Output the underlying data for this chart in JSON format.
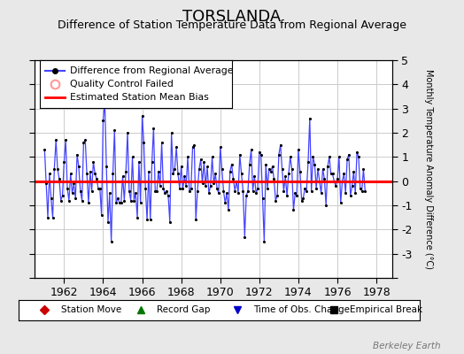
{
  "title": "TORSLANDA",
  "subtitle": "Difference of Station Temperature Data from Regional Average",
  "ylabel_right": "Monthly Temperature Anomaly Difference (°C)",
  "ylim": [
    -4,
    5
  ],
  "yticks": [
    -4,
    -3,
    -2,
    -1,
    0,
    1,
    2,
    3,
    4,
    5
  ],
  "xlim": [
    1960.5,
    1978.8
  ],
  "xticks": [
    1962,
    1964,
    1966,
    1968,
    1970,
    1972,
    1974,
    1976,
    1978
  ],
  "bias_value": 0.0,
  "title_fontsize": 13,
  "subtitle_fontsize": 9,
  "background_color": "#e8e8e8",
  "plot_bg_color": "#ffffff",
  "grid_color": "#cccccc",
  "line_color": "#4444ff",
  "dot_color": "#000000",
  "bias_color": "#ff0000",
  "watermark": "Berkeley Earth",
  "start_year": 1961.0,
  "legend1_entries": [
    {
      "type": "line_dot",
      "color": "#4444ff",
      "dot_color": "#000000",
      "label": "Difference from Regional Average"
    },
    {
      "type": "circle",
      "color": "#ffaaaa",
      "label": "Quality Control Failed"
    },
    {
      "type": "line",
      "color": "#ff0000",
      "label": "Estimated Station Mean Bias"
    }
  ],
  "legend2_entries": [
    {
      "marker": "D",
      "color": "#cc0000",
      "label": "Station Move"
    },
    {
      "marker": "^",
      "color": "#007700",
      "label": "Record Gap"
    },
    {
      "marker": "v",
      "color": "#0000cc",
      "label": "Time of Obs. Change"
    },
    {
      "marker": "s",
      "color": "#000000",
      "label": "Empirical Break"
    }
  ],
  "values": [
    1.3,
    -0.1,
    -1.5,
    0.3,
    -0.7,
    -1.5,
    0.5,
    1.7,
    0.5,
    0.1,
    -0.8,
    -0.6,
    0.8,
    1.7,
    -0.3,
    -0.8,
    0.3,
    -0.5,
    -0.1,
    -0.7,
    1.1,
    0.6,
    -0.4,
    -0.8,
    1.6,
    1.7,
    0.3,
    -0.9,
    0.4,
    -0.4,
    0.8,
    0.3,
    0.1,
    -0.3,
    -0.3,
    -1.4,
    2.5,
    3.3,
    0.6,
    -1.7,
    -0.5,
    -2.5,
    0.3,
    2.1,
    -0.9,
    -0.7,
    -0.9,
    -0.9,
    0.2,
    -0.8,
    0.4,
    2.0,
    -0.4,
    -0.8,
    1.0,
    -0.8,
    -0.5,
    -1.5,
    0.8,
    -0.9,
    2.7,
    1.6,
    -0.3,
    -1.6,
    0.4,
    -1.6,
    0.8,
    2.2,
    -0.4,
    -0.4,
    0.4,
    -0.2,
    1.6,
    -0.3,
    -0.5,
    -0.4,
    -0.6,
    -1.7,
    2.0,
    0.3,
    0.5,
    1.4,
    0.3,
    -0.3,
    0.6,
    -0.3,
    0.2,
    -0.2,
    1.0,
    -0.4,
    -0.3,
    1.4,
    1.5,
    -1.6,
    -0.4,
    0.5,
    0.9,
    -0.1,
    0.8,
    -0.2,
    0.6,
    -0.5,
    -0.2,
    1.0,
    -0.1,
    0.3,
    -0.3,
    -0.5,
    1.4,
    0.5,
    -0.4,
    -0.9,
    -0.5,
    -1.2,
    0.4,
    0.7,
    0.1,
    -0.4,
    0.0,
    -0.5,
    1.1,
    0.3,
    -0.4,
    -2.3,
    -0.6,
    -0.4,
    0.7,
    1.3,
    -0.4,
    0.2,
    -0.5,
    -0.3,
    1.2,
    1.1,
    -0.7,
    -2.5,
    0.7,
    -0.3,
    0.5,
    0.4,
    0.6,
    0.1,
    -0.8,
    -0.6,
    1.1,
    1.5,
    0.5,
    -0.4,
    0.2,
    -0.6,
    0.3,
    1.0,
    0.5,
    -1.2,
    -0.5,
    -0.6,
    1.3,
    0.4,
    -0.8,
    -0.7,
    -0.3,
    -0.4,
    0.8,
    2.6,
    -0.4,
    1.0,
    0.7,
    -0.3,
    0.5,
    0.0,
    -0.5,
    0.5,
    0.1,
    -1.0,
    0.6,
    1.0,
    0.3,
    0.3,
    0.0,
    -0.2,
    0.1,
    1.0,
    -0.9,
    0.0,
    0.3,
    -0.5,
    0.9,
    1.1,
    -0.6,
    -0.2,
    0.4,
    -0.5,
    1.2,
    1.0,
    -0.3,
    -0.4,
    0.5,
    -0.4
  ]
}
